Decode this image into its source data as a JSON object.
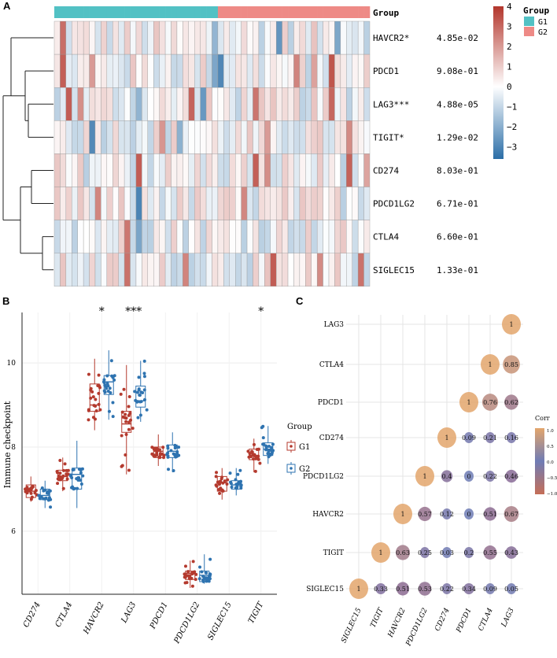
{
  "panels": {
    "A": "A",
    "B": "B",
    "C": "C"
  },
  "chart_data": [
    {
      "type": "heatmap",
      "panel": "A",
      "group_title": "Group",
      "groups": [
        "G1",
        "G2"
      ],
      "group_colors": {
        "G1": "#52c1c4",
        "G2": "#ee8a86"
      },
      "n_samples": {
        "G1": 28,
        "G2": 26
      },
      "rows": [
        "HAVCR2*",
        "PDCD1",
        "LAG3***",
        "TIGIT*",
        "CD274",
        "PDCD1LG2",
        "CTLA4",
        "SIGLEC15"
      ],
      "pvalues": [
        "4.85e-02",
        "9.08e-01",
        "4.88e-05",
        "1.29e-02",
        "8.03e-01",
        "6.71e-01",
        "6.60e-01",
        "1.33e-01"
      ],
      "colorbar": {
        "ticks": [
          "4",
          "3",
          "2",
          "1",
          "0",
          "−1",
          "−2",
          "−3"
        ],
        "range": [
          -3.6,
          4
        ],
        "low": "#2b6ea7",
        "mid": "#ffffff",
        "high": "#b3362c"
      }
    },
    {
      "type": "box",
      "panel": "B",
      "ylabel": "Immune checkpoint",
      "legend_title": "Group",
      "categories": [
        "CD274",
        "CTLA4",
        "HAVCR2",
        "LAG3",
        "PDCD1",
        "PDCD1LG2",
        "SIGLEC15",
        "TIGIT"
      ],
      "significance": [
        "",
        "",
        "*",
        "***",
        "",
        "",
        "",
        "*"
      ],
      "yticks": [
        6,
        8,
        10
      ],
      "ylim": [
        4.5,
        11.2
      ],
      "series": [
        {
          "name": "G1",
          "color": "#b43a2e",
          "box": [
            [
              6.7,
              6.8,
              6.95,
              7.1,
              7.3
            ],
            [
              6.95,
              7.2,
              7.3,
              7.45,
              7.75
            ],
            [
              8.4,
              8.85,
              9.0,
              9.5,
              10.1
            ],
            [
              7.35,
              8.35,
              8.55,
              8.85,
              9.95
            ],
            [
              7.55,
              7.75,
              7.9,
              8.0,
              8.3
            ],
            [
              4.65,
              4.85,
              5.0,
              5.05,
              5.3
            ],
            [
              6.75,
              6.95,
              7.15,
              7.3,
              7.5
            ],
            [
              7.4,
              7.7,
              7.8,
              7.95,
              8.2
            ]
          ]
        },
        {
          "name": "G2",
          "color": "#2e73b0",
          "box": [
            [
              6.55,
              6.75,
              6.85,
              7.0,
              7.2
            ],
            [
              6.55,
              7.0,
              7.35,
              7.5,
              8.15
            ],
            [
              8.65,
              9.25,
              9.55,
              9.7,
              10.3
            ],
            [
              8.6,
              8.95,
              9.1,
              9.45,
              10.05
            ],
            [
              7.4,
              7.75,
              7.9,
              8.05,
              8.35
            ],
            [
              4.75,
              4.8,
              4.95,
              5.05,
              5.45
            ],
            [
              6.85,
              7.0,
              7.1,
              7.2,
              7.5
            ],
            [
              7.6,
              7.8,
              7.95,
              8.1,
              8.5
            ]
          ]
        }
      ]
    },
    {
      "type": "correlation",
      "panel": "C",
      "legend_title": "Corr",
      "legend_ticks": [
        "1.0",
        "0.5",
        "0.0",
        "−0.5",
        "−1.0"
      ],
      "labels_y_top_down": [
        "LAG3",
        "CTLA4",
        "PDCD1",
        "CD274",
        "PDCD1LG2",
        "HAVCR2",
        "TIGIT",
        "SIGLEC15"
      ],
      "labels_x": [
        "SIGLEC15",
        "TIGIT",
        "HAVCR2",
        "PDCD1LG2",
        "CD274",
        "PDCD1",
        "CTLA4",
        "LAG3"
      ],
      "cells": [
        {
          "r": 0,
          "c": 7,
          "text": "1",
          "v": 1
        },
        {
          "r": 1,
          "c": 6,
          "text": "1",
          "v": 1
        },
        {
          "r": 1,
          "c": 7,
          "text": "0.85",
          "v": 0.85
        },
        {
          "r": 2,
          "c": 5,
          "text": "1",
          "v": 1
        },
        {
          "r": 2,
          "c": 6,
          "text": "0.76",
          "v": 0.76
        },
        {
          "r": 2,
          "c": 7,
          "text": "0.62",
          "v": 0.62
        },
        {
          "r": 3,
          "c": 4,
          "text": "1",
          "v": 1
        },
        {
          "r": 3,
          "c": 5,
          "text": "0.09",
          "v": 0.09
        },
        {
          "r": 3,
          "c": 6,
          "text": "0.21",
          "v": 0.21
        },
        {
          "r": 3,
          "c": 7,
          "text": "0.16",
          "v": 0.16
        },
        {
          "r": 4,
          "c": 3,
          "text": "1",
          "v": 1
        },
        {
          "r": 4,
          "c": 4,
          "text": "0.4",
          "v": 0.4
        },
        {
          "r": 4,
          "c": 5,
          "text": "0",
          "v": 0
        },
        {
          "r": 4,
          "c": 6,
          "text": "0.22",
          "v": 0.22
        },
        {
          "r": 4,
          "c": 7,
          "text": "0.46",
          "v": 0.46
        },
        {
          "r": 5,
          "c": 2,
          "text": "1",
          "v": 1
        },
        {
          "r": 5,
          "c": 3,
          "text": "0.57",
          "v": 0.57
        },
        {
          "r": 5,
          "c": 4,
          "text": "0.12",
          "v": 0.12
        },
        {
          "r": 5,
          "c": 5,
          "text": "0",
          "v": 0
        },
        {
          "r": 5,
          "c": 6,
          "text": "0.51",
          "v": 0.51
        },
        {
          "r": 5,
          "c": 7,
          "text": "0.67",
          "v": 0.67
        },
        {
          "r": 6,
          "c": 1,
          "text": "1",
          "v": 1
        },
        {
          "r": 6,
          "c": 2,
          "text": "0.63",
          "v": 0.63
        },
        {
          "r": 6,
          "c": 3,
          "text": "0.25",
          "v": 0.25
        },
        {
          "r": 6,
          "c": 4,
          "text": "0.03",
          "v": 0.03
        },
        {
          "r": 6,
          "c": 5,
          "text": "0.2",
          "v": 0.2
        },
        {
          "r": 6,
          "c": 6,
          "text": "0.55",
          "v": 0.55
        },
        {
          "r": 6,
          "c": 7,
          "text": "0.43",
          "v": 0.43
        },
        {
          "r": 7,
          "c": 0,
          "text": "1",
          "v": 1
        },
        {
          "r": 7,
          "c": 1,
          "text": "0.33",
          "v": 0.33
        },
        {
          "r": 7,
          "c": 2,
          "text": "0.51",
          "v": 0.51
        },
        {
          "r": 7,
          "c": 3,
          "text": "0.53",
          "v": 0.53
        },
        {
          "r": 7,
          "c": 4,
          "text": "0.22",
          "v": 0.22
        },
        {
          "r": 7,
          "c": 5,
          "text": "0.34",
          "v": 0.34
        },
        {
          "r": 7,
          "c": 6,
          "text": "0.09",
          "v": 0.09
        },
        {
          "r": 7,
          "c": 7,
          "text": "0.05",
          "v": 0.05
        }
      ]
    }
  ]
}
